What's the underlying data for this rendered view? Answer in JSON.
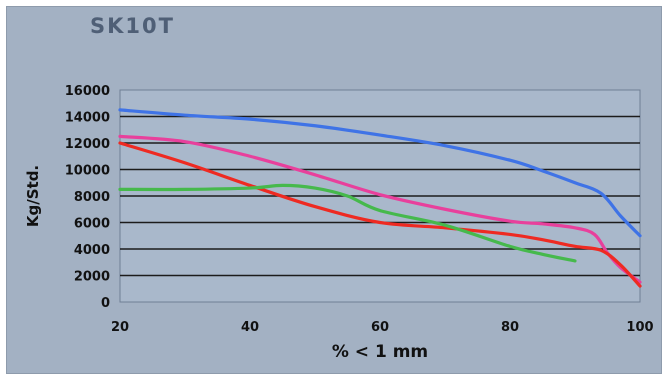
{
  "chart_data": {
    "type": "line",
    "title": "SK10T",
    "xlabel": "% < 1 mm",
    "ylabel": "Kg/Std.",
    "xlim": [
      20,
      100
    ],
    "ylim": [
      0,
      16000
    ],
    "xticks": [
      20,
      40,
      60,
      80,
      100
    ],
    "yticks": [
      0,
      2000,
      4000,
      6000,
      8000,
      10000,
      12000,
      14000,
      16000
    ],
    "grid": "horizontal",
    "legend": "none",
    "series": [
      {
        "color": "#3f73e6",
        "x": [
          20,
          30,
          40,
          50,
          60,
          70,
          80,
          85,
          90,
          94,
          97,
          100
        ],
        "y": [
          14500,
          14100,
          13800,
          13300,
          12600,
          11800,
          10700,
          9900,
          9000,
          8200,
          6500,
          5000
        ]
      },
      {
        "color": "#e8409c",
        "x": [
          20,
          30,
          40,
          50,
          60,
          70,
          80,
          85,
          90,
          93,
          95,
          97,
          100
        ],
        "y": [
          12500,
          12100,
          11000,
          9600,
          8100,
          7000,
          6100,
          5900,
          5600,
          5100,
          3700,
          2600,
          1500
        ]
      },
      {
        "color": "#ee2a22",
        "x": [
          20,
          30,
          40,
          50,
          60,
          70,
          80,
          85,
          90,
          94,
          97,
          100
        ],
        "y": [
          12000,
          10500,
          8800,
          7200,
          6000,
          5600,
          5100,
          4700,
          4200,
          3900,
          2800,
          1200
        ]
      },
      {
        "color": "#46b94c",
        "x": [
          20,
          30,
          40,
          45,
          50,
          55,
          60,
          70,
          80,
          85,
          90
        ],
        "y": [
          8500,
          8500,
          8600,
          8800,
          8600,
          8000,
          6900,
          5800,
          4200,
          3600,
          3100
        ]
      }
    ]
  }
}
